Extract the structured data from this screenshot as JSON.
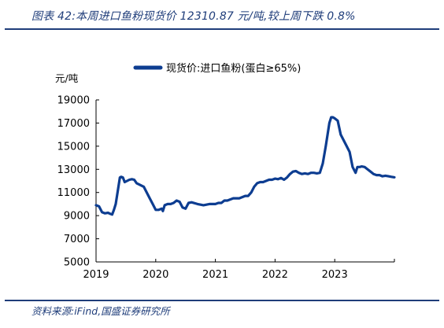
{
  "header": {
    "title": "图表 42:本周进口鱼粉现货价 12310.87 元/吨,较上周下跌 0.8%"
  },
  "footer": {
    "source": "资料来源:iFind,国盛证券研究所"
  },
  "chart_data": {
    "type": "line",
    "unit": "元/吨",
    "legend_position": "top",
    "grid": false,
    "ylim": [
      5000,
      19000
    ],
    "yticks": [
      19000,
      17000,
      15000,
      13000,
      11000,
      9000,
      7000,
      5000
    ],
    "xlim": [
      2019.0,
      2024.0
    ],
    "xticks": [
      "2019",
      "2020",
      "2021",
      "2022",
      "2023"
    ],
    "series": [
      {
        "name": "现货价:进口鱼粉(蛋白≥65%)",
        "color": "#0d3d91",
        "x": [
          2019.0,
          2019.05,
          2019.1,
          2019.15,
          2019.2,
          2019.24,
          2019.27,
          2019.3,
          2019.33,
          2019.36,
          2019.4,
          2019.42,
          2019.45,
          2019.48,
          2019.52,
          2019.56,
          2019.6,
          2019.64,
          2019.68,
          2019.72,
          2019.76,
          2019.8,
          2019.85,
          2019.9,
          2019.95,
          2020.0,
          2020.05,
          2020.1,
          2020.12,
          2020.15,
          2020.2,
          2020.25,
          2020.3,
          2020.35,
          2020.4,
          2020.45,
          2020.5,
          2020.55,
          2020.6,
          2020.7,
          2020.8,
          2020.9,
          2021.0,
          2021.05,
          2021.1,
          2021.15,
          2021.2,
          2021.3,
          2021.4,
          2021.5,
          2021.55,
          2021.6,
          2021.65,
          2021.7,
          2021.75,
          2021.8,
          2021.85,
          2021.9,
          2021.95,
          2022.0,
          2022.05,
          2022.1,
          2022.15,
          2022.2,
          2022.25,
          2022.3,
          2022.35,
          2022.4,
          2022.45,
          2022.5,
          2022.55,
          2022.6,
          2022.65,
          2022.7,
          2022.75,
          2022.8,
          2022.85,
          2022.88,
          2022.91,
          2022.94,
          2022.97,
          2023.0,
          2023.05,
          2023.1,
          2023.15,
          2023.2,
          2023.25,
          2023.3,
          2023.35,
          2023.38,
          2023.42,
          2023.45,
          2023.5,
          2023.55,
          2023.6,
          2023.65,
          2023.7,
          2023.75,
          2023.8,
          2023.85,
          2023.9,
          2023.95,
          2024.0
        ],
        "y": [
          9900,
          9800,
          9300,
          9200,
          9250,
          9150,
          9100,
          9500,
          10000,
          11000,
          12300,
          12350,
          12300,
          11900,
          12000,
          12100,
          12150,
          12100,
          11800,
          11700,
          11600,
          11500,
          11000,
          10500,
          10000,
          9500,
          9500,
          9600,
          9400,
          9900,
          10000,
          10000,
          10100,
          10300,
          10200,
          9700,
          9600,
          10100,
          10150,
          10000,
          9900,
          10000,
          10000,
          10100,
          10100,
          10300,
          10300,
          10500,
          10500,
          10700,
          10700,
          11000,
          11500,
          11800,
          11900,
          11900,
          12000,
          12100,
          12100,
          12200,
          12150,
          12250,
          12100,
          12300,
          12600,
          12800,
          12850,
          12700,
          12600,
          12650,
          12600,
          12700,
          12700,
          12650,
          12700,
          13500,
          15000,
          16000,
          17000,
          17500,
          17500,
          17400,
          17200,
          16000,
          15500,
          15000,
          14500,
          13200,
          12700,
          13200,
          13200,
          13250,
          13200,
          13000,
          12800,
          12600,
          12500,
          12500,
          12400,
          12450,
          12400,
          12350,
          12310
        ]
      }
    ]
  }
}
